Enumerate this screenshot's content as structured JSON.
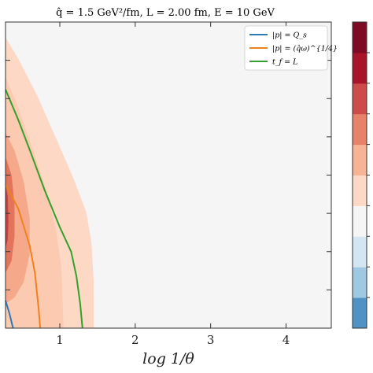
{
  "chart_data": {
    "type": "contour",
    "title": "q̂ = 1.5 GeV²/fm, L = 2.00 fm, E = 10 GeV",
    "xlabel": "log 1/θ",
    "ylabel": "",
    "xlim": [
      0.28,
      4.6
    ],
    "ylim": [
      0,
      1
    ],
    "xticks": [
      1,
      2,
      3,
      4
    ],
    "grid": false,
    "legend_position": "top-right",
    "legend": [
      {
        "label": "|p| = Q_s",
        "color": "#2c7bb6"
      },
      {
        "label": "|p| = (q̂ω)^{1/4}",
        "color": "#f0821e"
      },
      {
        "label": "t_f = L",
        "color": "#33a02c"
      }
    ],
    "series": [
      {
        "name": "|p| = Q_s",
        "x": [
          0.28,
          0.33,
          0.38
        ],
        "y": [
          0.09,
          0.05,
          0.0
        ]
      },
      {
        "name": "|p| = (q̂ω)^{1/4}",
        "x": [
          0.28,
          0.45,
          0.6,
          0.67,
          0.72,
          0.74
        ],
        "y": [
          0.47,
          0.39,
          0.27,
          0.18,
          0.06,
          0.0
        ]
      },
      {
        "name": "t_f = L",
        "x": [
          0.28,
          0.45,
          0.62,
          0.8,
          1.0,
          1.15,
          1.22,
          1.27,
          1.3
        ],
        "y": [
          0.78,
          0.68,
          0.57,
          0.45,
          0.33,
          0.25,
          0.17,
          0.08,
          0.0
        ]
      }
    ],
    "colorbar": {
      "colors": [
        "#4e93c3",
        "#9fc9e2",
        "#d4e6f1",
        "#f5f5f5",
        "#fdd9c5",
        "#f7b396",
        "#e6826a",
        "#cc4c4a",
        "#a81529",
        "#7f0a24"
      ],
      "ticks": 9
    },
    "contours": [
      {
        "color": "#fdd9c5",
        "points": [
          [
            0.28,
            0.95
          ],
          [
            0.45,
            0.88
          ],
          [
            0.7,
            0.76
          ],
          [
            0.95,
            0.62
          ],
          [
            1.18,
            0.49
          ],
          [
            1.35,
            0.38
          ],
          [
            1.42,
            0.28
          ],
          [
            1.45,
            0.15
          ],
          [
            1.45,
            0.0
          ],
          [
            0.28,
            0.0
          ]
        ]
      },
      {
        "color": "#fcc9b1",
        "points": [
          [
            0.28,
            0.82
          ],
          [
            0.42,
            0.74
          ],
          [
            0.62,
            0.6
          ],
          [
            0.82,
            0.45
          ],
          [
            0.95,
            0.32
          ],
          [
            1.02,
            0.2
          ],
          [
            1.05,
            0.0
          ],
          [
            0.28,
            0.0
          ]
        ]
      },
      {
        "color": "#f5a98a",
        "points": [
          [
            0.28,
            0.64
          ],
          [
            0.4,
            0.58
          ],
          [
            0.52,
            0.48
          ],
          [
            0.6,
            0.36
          ],
          [
            0.6,
            0.24
          ],
          [
            0.52,
            0.15
          ],
          [
            0.4,
            0.1
          ],
          [
            0.28,
            0.08
          ]
        ]
      },
      {
        "color": "#e2745c",
        "points": [
          [
            0.28,
            0.56
          ],
          [
            0.36,
            0.5
          ],
          [
            0.4,
            0.4
          ],
          [
            0.4,
            0.3
          ],
          [
            0.36,
            0.22
          ],
          [
            0.28,
            0.18
          ]
        ]
      },
      {
        "color": "#c7423f",
        "points": [
          [
            0.28,
            0.47
          ],
          [
            0.31,
            0.43
          ],
          [
            0.32,
            0.35
          ],
          [
            0.31,
            0.29
          ],
          [
            0.28,
            0.26
          ]
        ]
      }
    ]
  }
}
